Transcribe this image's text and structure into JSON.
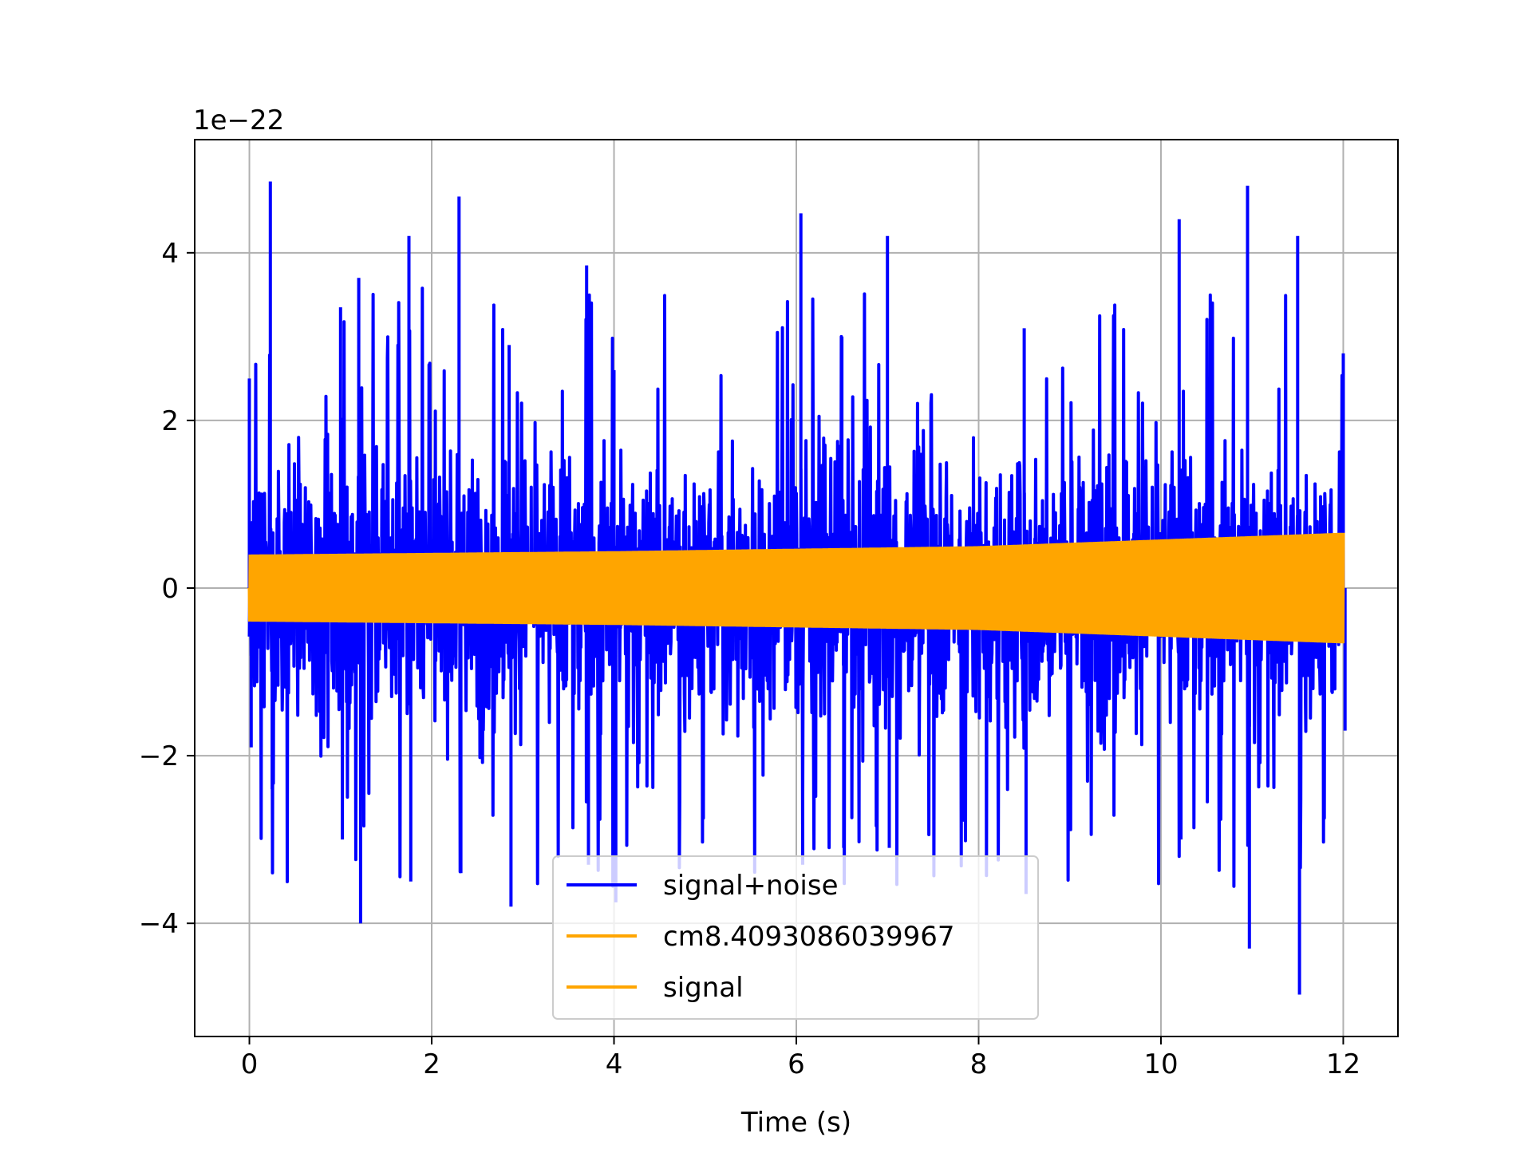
{
  "chart_data": {
    "type": "line",
    "title": "",
    "xlabel": "Time (s)",
    "ylabel": "",
    "y_offset_label": "1e−22",
    "xlim": [
      -0.6,
      12.6
    ],
    "ylim": [
      -5.35,
      5.35
    ],
    "x_ticks": [
      0,
      2,
      4,
      6,
      8,
      10,
      12
    ],
    "x_tick_labels": [
      "0",
      "2",
      "4",
      "6",
      "8",
      "10",
      "12"
    ],
    "y_ticks": [
      -4,
      -2,
      0,
      2,
      4
    ],
    "y_tick_labels": [
      "−4",
      "−2",
      "0",
      "2",
      "4"
    ],
    "grid": true,
    "legend_position": "lower-center",
    "series": [
      {
        "name": "signal+noise",
        "color": "#0000ff",
        "x_range": [
          0,
          12
        ],
        "envelope_points": [
          {
            "x": 0.0,
            "max": 2.5,
            "min": -1.9
          },
          {
            "x": 0.23,
            "max": 4.85,
            "min": -2.4
          },
          {
            "x": 1.0,
            "max": 3.35,
            "min": -3.0
          },
          {
            "x": 1.2,
            "max": 3.7,
            "min": -4.0
          },
          {
            "x": 1.75,
            "max": 4.2,
            "min": -3.5
          },
          {
            "x": 2.3,
            "max": 4.67,
            "min": -3.4
          },
          {
            "x": 2.85,
            "max": 2.9,
            "min": -3.8
          },
          {
            "x": 3.7,
            "max": 3.85,
            "min": -3.3
          },
          {
            "x": 4.0,
            "max": 2.6,
            "min": -3.75
          },
          {
            "x": 6.05,
            "max": 4.47,
            "min": -3.3
          },
          {
            "x": 6.5,
            "max": 3.0,
            "min": -3.1
          },
          {
            "x": 7.0,
            "max": 4.2,
            "min": -3.1
          },
          {
            "x": 8.5,
            "max": 3.1,
            "min": -3.65
          },
          {
            "x": 10.2,
            "max": 4.4,
            "min": -3.0
          },
          {
            "x": 10.95,
            "max": 4.8,
            "min": -4.3
          },
          {
            "x": 11.5,
            "max": 4.2,
            "min": -4.85
          },
          {
            "x": 12.0,
            "max": 2.8,
            "min": -1.7
          }
        ]
      },
      {
        "name": "cm8.4093086039967",
        "color": "#ffa500",
        "x_range": [
          0,
          12
        ],
        "amplitude_points": [
          {
            "x": 0,
            "amp": 0.4
          },
          {
            "x": 4,
            "amp": 0.44
          },
          {
            "x": 8,
            "amp": 0.5
          },
          {
            "x": 12,
            "amp": 0.66
          }
        ]
      },
      {
        "name": "signal",
        "color": "#ffa500",
        "x_range": [
          0,
          12
        ],
        "amplitude_points": [
          {
            "x": 0,
            "amp": 0.4
          },
          {
            "x": 4,
            "amp": 0.44
          },
          {
            "x": 8,
            "amp": 0.5
          },
          {
            "x": 12,
            "amp": 0.66
          }
        ]
      }
    ]
  }
}
